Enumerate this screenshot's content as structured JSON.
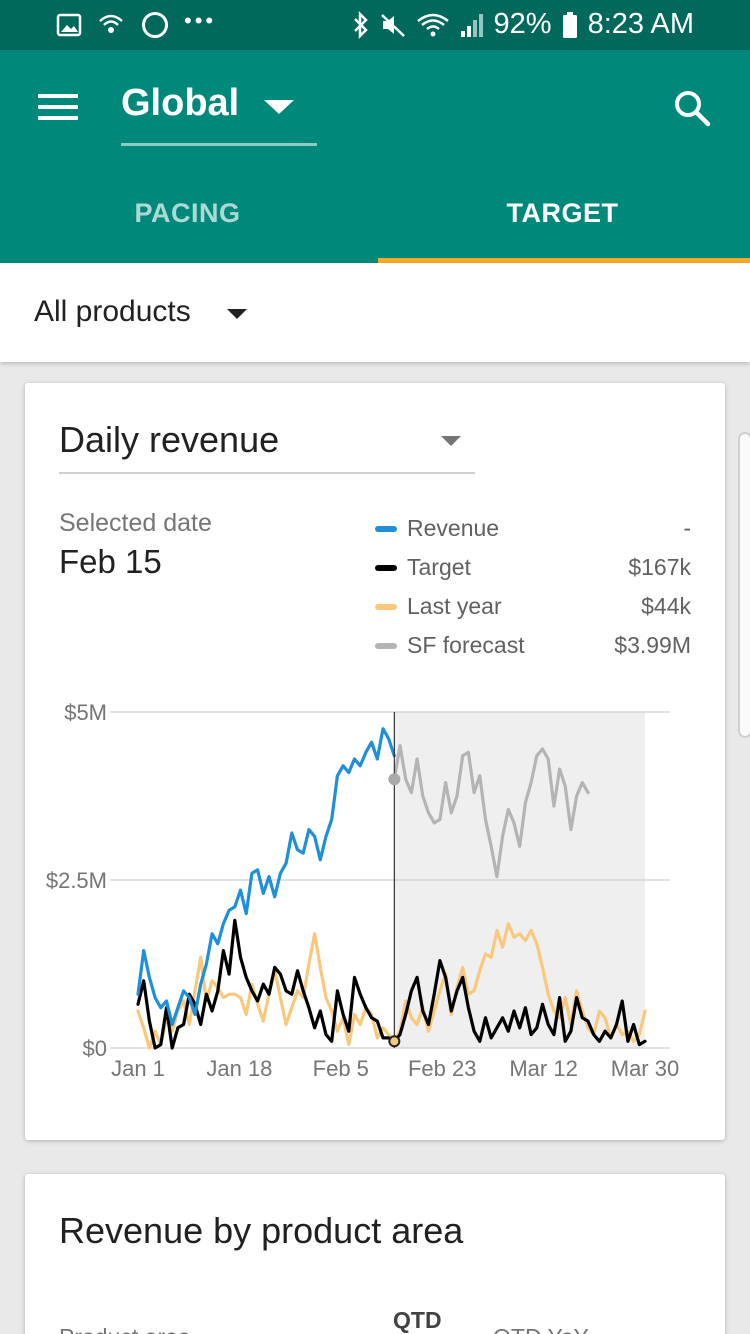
{
  "status_bar": {
    "battery": "92%",
    "time": "8:23 AM",
    "left_icons": [
      "image-icon",
      "wifi-call-icon",
      "circle-icon",
      "more-dots-icon"
    ],
    "right_icons": [
      "bluetooth-icon",
      "mute-icon",
      "wifi-icon",
      "signal-icon",
      "battery-icon"
    ]
  },
  "app_bar": {
    "scope": "Global",
    "tabs": [
      {
        "label": "PACING",
        "active": false
      },
      {
        "label": "TARGET",
        "active": true
      }
    ],
    "accent_color": "#f9a825",
    "bar_color": "#00897b"
  },
  "filter": {
    "label": "All products"
  },
  "revenue_card": {
    "metric": "Daily revenue",
    "selected_date_label": "Selected date",
    "selected_date": "Feb 15",
    "legend": [
      {
        "name": "Revenue",
        "value": "-",
        "color": "#1e8fd8"
      },
      {
        "name": "Target",
        "value": "$167k",
        "color": "#000000"
      },
      {
        "name": "Last year",
        "value": "$44k",
        "color": "#f8c87c"
      },
      {
        "name": "SF forecast",
        "value": "$3.99M",
        "color": "#b4b4b4"
      }
    ]
  },
  "chart_data": {
    "type": "line",
    "x_ticks": [
      "Jan 1",
      "Jan 18",
      "Feb 5",
      "Feb 23",
      "Mar 12",
      "Mar 30"
    ],
    "y_ticks": [
      "$0",
      "$2.5M",
      "$5M"
    ],
    "y_tick_values": [
      0,
      2.5,
      5
    ],
    "ylim": [
      0,
      5
    ],
    "x_range_days": [
      0,
      89
    ],
    "forecast_start_day": 45,
    "selected_day": 45,
    "grid": true,
    "shaded_region": "forecast",
    "series": [
      {
        "name": "Revenue",
        "color": "#1e8fd8",
        "x_day_start": 0,
        "values": [
          0.8,
          1.45,
          1.05,
          0.75,
          0.6,
          0.7,
          0.35,
          0.6,
          0.85,
          0.75,
          0.5,
          0.95,
          1.25,
          1.7,
          1.55,
          1.85,
          2.05,
          2.1,
          2.35,
          2.0,
          2.6,
          2.65,
          2.3,
          2.55,
          2.25,
          2.6,
          2.75,
          3.2,
          2.95,
          2.9,
          3.25,
          3.15,
          2.8,
          3.15,
          3.4,
          4.05,
          4.2,
          4.1,
          4.3,
          4.2,
          4.4,
          4.55,
          4.3,
          4.75,
          4.6,
          4.35
        ]
      },
      {
        "name": "Target",
        "color": "#000000",
        "x_day_start": 0,
        "values": [
          0.65,
          1.0,
          0.4,
          0.0,
          0.05,
          0.6,
          0.0,
          0.3,
          0.35,
          0.8,
          0.65,
          0.35,
          0.8,
          0.55,
          0.85,
          1.45,
          1.1,
          1.9,
          1.35,
          1.05,
          0.85,
          0.7,
          0.95,
          0.8,
          1.2,
          1.1,
          0.85,
          0.8,
          1.15,
          0.85,
          0.6,
          0.3,
          0.55,
          0.2,
          0.1,
          0.85,
          0.5,
          0.25,
          1.05,
          0.8,
          0.6,
          0.45,
          0.4,
          0.15,
          0.15,
          0.1,
          0.2,
          0.5,
          0.85,
          1.05,
          0.55,
          0.35,
          0.8,
          1.3,
          1.05,
          0.55,
          0.85,
          1.05,
          0.6,
          0.25,
          0.1,
          0.45,
          0.15,
          0.3,
          0.45,
          0.25,
          0.55,
          0.3,
          0.6,
          0.2,
          0.3,
          0.65,
          0.35,
          0.2,
          0.75,
          0.1,
          0.25,
          0.75,
          0.45,
          0.4,
          0.2,
          0.1,
          0.25,
          0.15,
          0.35,
          0.7,
          0.1,
          0.35,
          0.05,
          0.1
        ]
      },
      {
        "name": "Last year",
        "color": "#f8c87c",
        "x_day_start": 0,
        "values": [
          0.55,
          0.3,
          0.0,
          0.25,
          0.05,
          0.45,
          0.25,
          0.55,
          0.7,
          0.35,
          0.85,
          1.35,
          0.7,
          1.0,
          0.9,
          0.75,
          0.8,
          0.8,
          0.75,
          0.5,
          0.95,
          0.65,
          0.4,
          0.8,
          1.15,
          0.75,
          0.35,
          0.6,
          0.85,
          0.75,
          1.25,
          1.7,
          1.2,
          0.75,
          0.55,
          0.25,
          0.45,
          0.05,
          0.5,
          0.35,
          0.6,
          0.5,
          0.15,
          0.3,
          0.2,
          0.1,
          0.25,
          0.7,
          0.45,
          0.35,
          0.6,
          0.25,
          0.55,
          0.85,
          1.1,
          0.5,
          0.9,
          1.2,
          0.8,
          0.85,
          1.15,
          1.4,
          1.35,
          1.75,
          1.5,
          1.85,
          1.65,
          1.7,
          1.6,
          1.75,
          1.55,
          1.2,
          0.8,
          0.55,
          0.45,
          0.75,
          0.35,
          0.85,
          0.55,
          0.3,
          0.2,
          0.55,
          0.45,
          0.15,
          0.35,
          0.2,
          0.25,
          0.1,
          0.2,
          0.55
        ]
      },
      {
        "name": "SF forecast",
        "color": "#b4b4b4",
        "x_day_start": 45,
        "values": [
          4.0,
          4.5,
          4.0,
          3.8,
          4.3,
          3.75,
          3.5,
          3.35,
          3.4,
          3.95,
          3.5,
          3.75,
          4.35,
          4.4,
          3.8,
          4.05,
          3.4,
          3.0,
          2.55,
          3.15,
          3.55,
          3.35,
          3.0,
          3.65,
          3.95,
          4.35,
          4.45,
          4.3,
          3.6,
          4.15,
          3.9,
          3.25,
          3.75,
          3.95,
          3.8
        ]
      }
    ]
  },
  "area_card": {
    "title": "Revenue by product area",
    "col_qtd": "QTD",
    "col_area": "Product area",
    "col_yoy": "QTD YoY"
  }
}
